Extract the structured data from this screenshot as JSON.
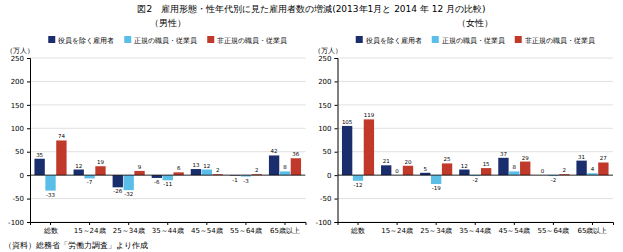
{
  "title": "図2　雇用形態・性年代別に見た雇用者数の増減(2013年1月と 2014 年 12 月の比較)",
  "source": "（資料）総務省「労働力調査」より作成",
  "chart_data": [
    {
      "type": "bar",
      "title": "（男性）",
      "ylabel": "（万人）",
      "categories": [
        "総数",
        "15～24歳",
        "25～34歳",
        "35～44歳",
        "45～54歳",
        "55～64歳",
        "65歳以上"
      ],
      "series": [
        {
          "name": "役員を除く雇用者",
          "color": "#1a2e6e",
          "values": [
            35,
            12,
            -26,
            -6,
            13,
            -1,
            42
          ]
        },
        {
          "name": "正規の職員・従業員",
          "color": "#5bbee8",
          "values": [
            -33,
            -7,
            -32,
            -11,
            12,
            -3,
            8
          ]
        },
        {
          "name": "非正規の職員・従業員",
          "color": "#c0392b",
          "values": [
            74,
            19,
            9,
            6,
            2,
            2,
            36
          ]
        }
      ],
      "ylim": [
        -100,
        250
      ],
      "yticks": [
        -100,
        -50,
        0,
        50,
        100,
        150,
        200,
        250
      ],
      "grid": true,
      "legend": "top",
      "data_labels": true
    },
    {
      "type": "bar",
      "title": "（女性）",
      "ylabel": "（万人）",
      "categories": [
        "総数",
        "15～24歳",
        "25～34歳",
        "35～44歳",
        "45～54歳",
        "55～64歳",
        "65歳以上"
      ],
      "series": [
        {
          "name": "役員を除く雇用者",
          "color": "#1a2e6e",
          "values": [
            105,
            21,
            5,
            12,
            37,
            0,
            31
          ]
        },
        {
          "name": "正規の職員・従業員",
          "color": "#5bbee8",
          "values": [
            -12,
            0,
            -19,
            -2,
            8,
            -2,
            4
          ]
        },
        {
          "name": "非正規の職員・従業員",
          "color": "#c0392b",
          "values": [
            119,
            20,
            25,
            15,
            29,
            2,
            27
          ]
        }
      ],
      "ylim": [
        -100,
        250
      ],
      "yticks": [
        -100,
        -50,
        0,
        50,
        100,
        150,
        200,
        250
      ],
      "grid": true,
      "legend": "top",
      "data_labels": true
    }
  ]
}
